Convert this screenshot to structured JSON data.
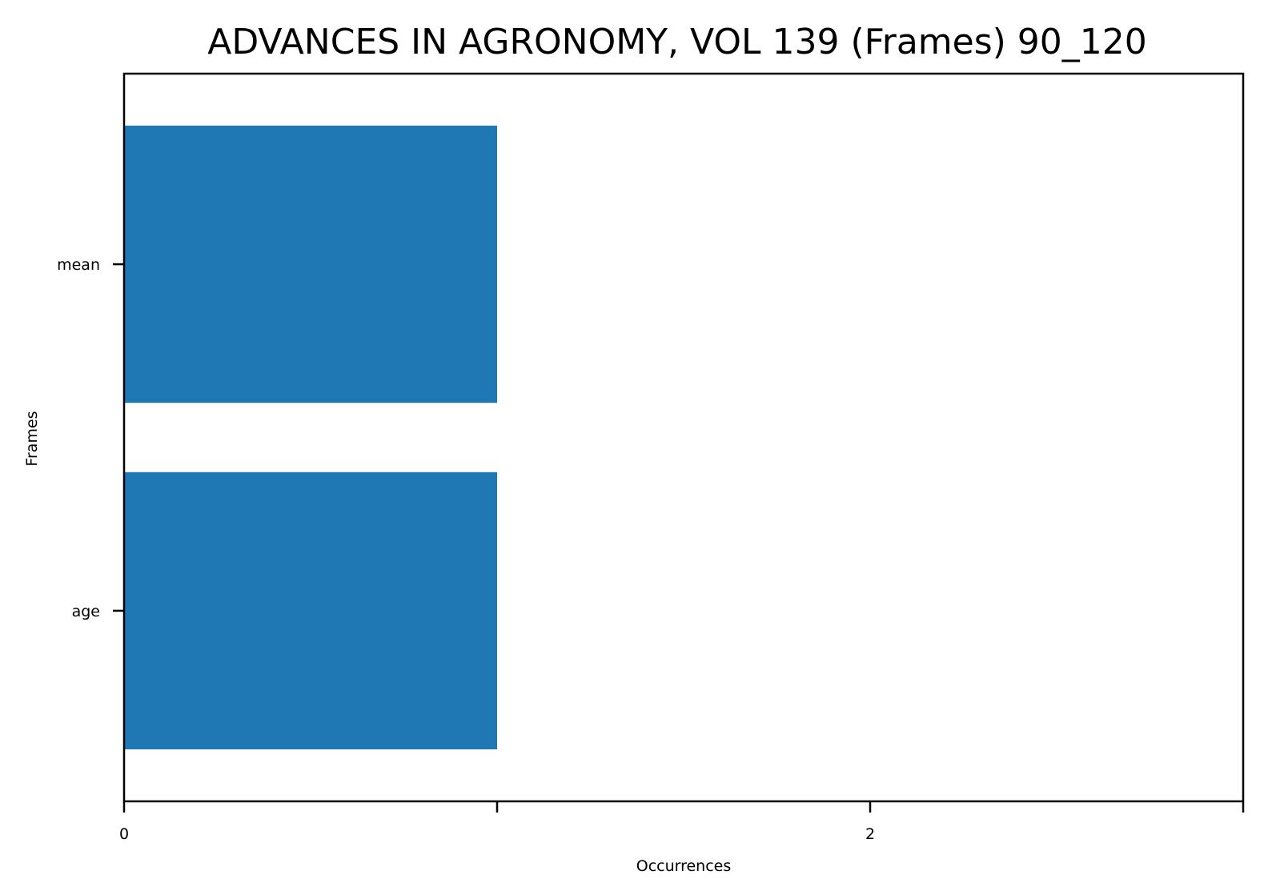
{
  "chart_data": {
    "type": "bar",
    "orientation": "horizontal",
    "title": "ADVANCES IN AGRONOMY, VOL 139 (Frames) 90_120",
    "xlabel": "Occurrences",
    "ylabel": "Frames",
    "categories": [
      "age",
      "mean"
    ],
    "values": [
      1,
      1
    ],
    "xlim": [
      0,
      3
    ],
    "xticks": [
      0,
      1,
      2,
      3
    ],
    "xtick_labels": [
      "0",
      "",
      "2",
      ""
    ],
    "grid": false,
    "legend": "none",
    "bar_color": "#1f77b4"
  }
}
